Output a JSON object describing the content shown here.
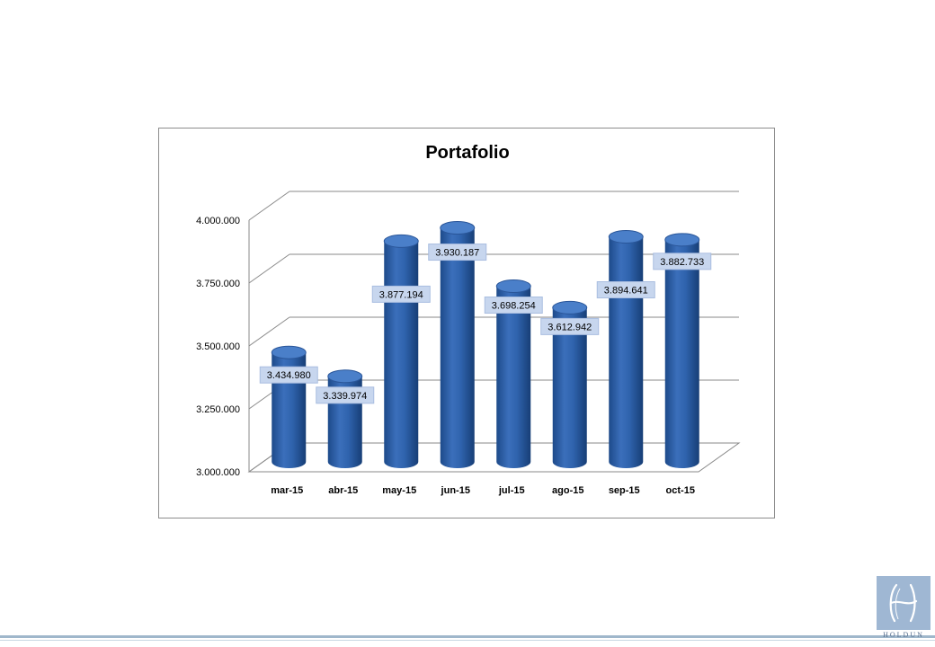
{
  "chart_data": {
    "type": "bar",
    "title": "Portafolio",
    "categories": [
      "mar-15",
      "abr-15",
      "may-15",
      "jun-15",
      "jul-15",
      "ago-15",
      "sep-15",
      "oct-15"
    ],
    "values": [
      3434980,
      3339974,
      3877194,
      3930187,
      3698254,
      3612942,
      3894641,
      3882733
    ],
    "value_labels": [
      "3.434.980",
      "3.339.974",
      "3.877.194",
      "3.930.187",
      "3.698.254",
      "3.612.942",
      "3.894.641",
      "3.882.733"
    ],
    "yticks": [
      3000000,
      3250000,
      3500000,
      3750000,
      4000000
    ],
    "ytick_labels": [
      "3.000.000",
      "3.250.000",
      "3.500.000",
      "3.750.000",
      "4.000.000"
    ],
    "ylim": [
      3000000,
      4000000
    ],
    "xlabel": "",
    "ylabel": "",
    "grid": true,
    "legend": "none",
    "style": "3d-cylinder",
    "colors": {
      "bar": "#2f63ad",
      "bar_dark": "#1d4a8a",
      "bar_top": "#4a7fc9",
      "label_bg": "#c7d6ee",
      "grid": "#8a8a8a"
    }
  },
  "logo": {
    "text": "HOLDUN"
  }
}
